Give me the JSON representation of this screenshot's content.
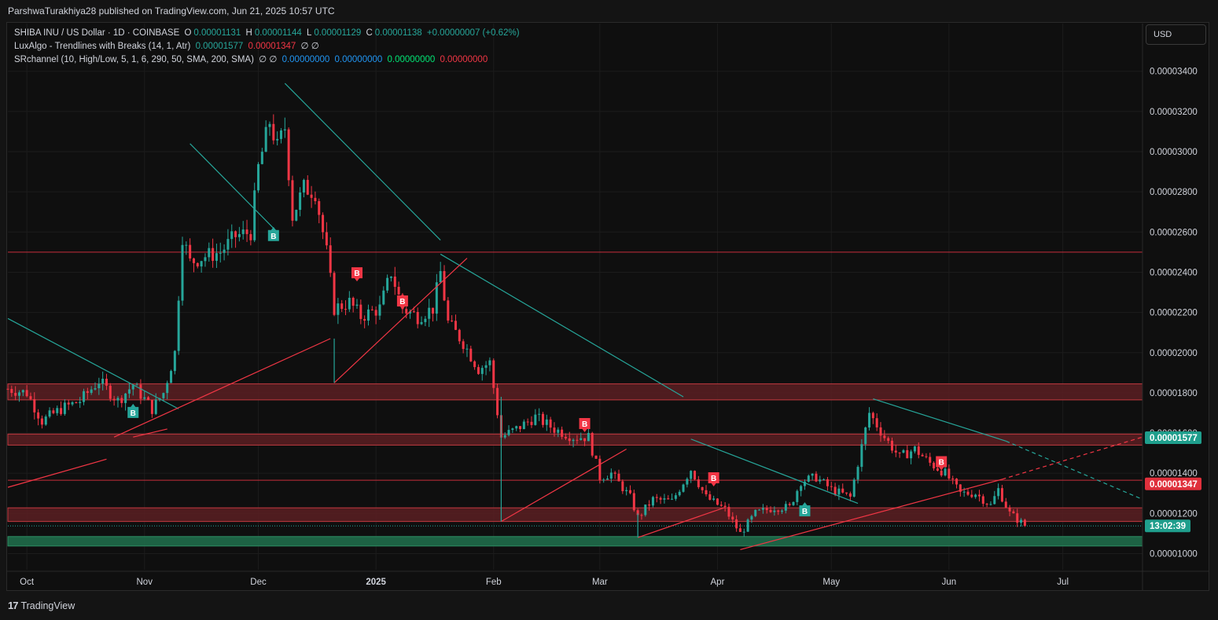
{
  "header": {
    "publisher_line": "ParshwaTurakhiya28 published on TradingView.com, Jun 21, 2025 10:57 UTC"
  },
  "legend": {
    "symbol": "SHIBA INU / US Dollar · 1D · COINBASE",
    "o_label": "O",
    "o": "0.00001131",
    "h_label": "H",
    "h": "0.00001144",
    "l_label": "L",
    "l": "0.00001129",
    "c_label": "C",
    "c": "0.00001138",
    "change": "+0.00000007 (+0.62%)",
    "ind1_name": "LuxAlgo - Trendlines with Breaks (14, 1, Atr)",
    "ind1_v1": "0.00001577",
    "ind1_v2": "0.00001347",
    "ind1_tail": "∅ ∅",
    "ind2_name": "SRchannel (10, High/Low, 5, 1, 6, 290, 50, SMA, 200, SMA)",
    "ind2_pre": "∅ ∅",
    "ind2_v1": "0.00000000",
    "ind2_v2": "0.00000000",
    "ind2_v3": "0.00000000",
    "ind2_v4": "0.00000000"
  },
  "currency_button": "USD",
  "footer": {
    "brand": "TradingView",
    "logo_text": "17"
  },
  "colors": {
    "up": "#26a69a",
    "down": "#f23645",
    "teal_line": "#26a69a",
    "red_line": "#f23645",
    "zone_red": "#5a1f22",
    "zone_green": "#1f6b4a",
    "bg": "#0f0f0f"
  },
  "chart_data": {
    "type": "candlestick",
    "ylim": [
      9.2e-06,
      3.52e-05
    ],
    "x_range": [
      "2024-09-26",
      "2025-07-22"
    ],
    "y_ticks": [
      "0.00001000",
      "0.00001200",
      "0.00001400",
      "0.00001600",
      "0.00001800",
      "0.00002000",
      "0.00002200",
      "0.00002400",
      "0.00002600",
      "0.00002800",
      "0.00003000",
      "0.00003200",
      "0.00003400"
    ],
    "x_ticks": [
      {
        "label": "Oct",
        "date": "2024-10-01"
      },
      {
        "label": "Nov",
        "date": "2024-11-01"
      },
      {
        "label": "Dec",
        "date": "2024-12-01"
      },
      {
        "label": "2025",
        "date": "2025-01-01"
      },
      {
        "label": "Feb",
        "date": "2025-02-01"
      },
      {
        "label": "Mar",
        "date": "2025-03-01"
      },
      {
        "label": "Apr",
        "date": "2025-04-01"
      },
      {
        "label": "May",
        "date": "2025-05-01"
      },
      {
        "label": "Jun",
        "date": "2025-06-01"
      },
      {
        "label": "Jul",
        "date": "2025-07-01"
      }
    ],
    "price_path": [
      [
        "2024-09-26",
        1.82e-05
      ],
      [
        "2024-10-01",
        1.8e-05
      ],
      [
        "2024-10-05",
        1.66e-05
      ],
      [
        "2024-10-10",
        1.72e-05
      ],
      [
        "2024-10-15",
        1.76e-05
      ],
      [
        "2024-10-20",
        1.86e-05
      ],
      [
        "2024-10-25",
        1.76e-05
      ],
      [
        "2024-10-29",
        1.84e-05
      ],
      [
        "2024-11-03",
        1.72e-05
      ],
      [
        "2024-11-06",
        1.8e-05
      ],
      [
        "2024-11-09",
        2e-05
      ],
      [
        "2024-11-11",
        2.58e-05
      ],
      [
        "2024-11-13",
        2.45e-05
      ],
      [
        "2024-11-17",
        2.48e-05
      ],
      [
        "2024-11-21",
        2.5e-05
      ],
      [
        "2024-11-25",
        2.58e-05
      ],
      [
        "2024-11-29",
        2.6e-05
      ],
      [
        "2024-12-01",
        2.92e-05
      ],
      [
        "2024-12-04",
        3.15e-05
      ],
      [
        "2024-12-06",
        3.02e-05
      ],
      [
        "2024-12-08",
        3.12e-05
      ],
      [
        "2024-12-10",
        2.68e-05
      ],
      [
        "2024-12-13",
        2.82e-05
      ],
      [
        "2024-12-16",
        2.8e-05
      ],
      [
        "2024-12-19",
        2.5e-05
      ],
      [
        "2024-12-21",
        2.22e-05
      ],
      [
        "2024-12-25",
        2.25e-05
      ],
      [
        "2024-12-28",
        2.18e-05
      ],
      [
        "2025-01-02",
        2.22e-05
      ],
      [
        "2025-01-05",
        2.4e-05
      ],
      [
        "2025-01-08",
        2.22e-05
      ],
      [
        "2025-01-12",
        2.18e-05
      ],
      [
        "2025-01-16",
        2.22e-05
      ],
      [
        "2025-01-18",
        2.4e-05
      ],
      [
        "2025-01-20",
        2.15e-05
      ],
      [
        "2025-01-24",
        2.05e-05
      ],
      [
        "2025-01-28",
        1.92e-05
      ],
      [
        "2025-01-31",
        1.95e-05
      ],
      [
        "2025-02-03",
        1.58e-05
      ],
      [
        "2025-02-07",
        1.62e-05
      ],
      [
        "2025-02-12",
        1.68e-05
      ],
      [
        "2025-02-17",
        1.62e-05
      ],
      [
        "2025-02-22",
        1.58e-05
      ],
      [
        "2025-02-26",
        1.58e-05
      ],
      [
        "2025-03-01",
        1.38e-05
      ],
      [
        "2025-03-04",
        1.4e-05
      ],
      [
        "2025-03-09",
        1.28e-05
      ],
      [
        "2025-03-11",
        1.18e-05
      ],
      [
        "2025-03-15",
        1.27e-05
      ],
      [
        "2025-03-20",
        1.26e-05
      ],
      [
        "2025-03-25",
        1.42e-05
      ],
      [
        "2025-03-29",
        1.28e-05
      ],
      [
        "2025-04-03",
        1.22e-05
      ],
      [
        "2025-04-07",
        1.1e-05
      ],
      [
        "2025-04-11",
        1.2e-05
      ],
      [
        "2025-04-16",
        1.23e-05
      ],
      [
        "2025-04-20",
        1.23e-05
      ],
      [
        "2025-04-23",
        1.36e-05
      ],
      [
        "2025-04-27",
        1.38e-05
      ],
      [
        "2025-05-01",
        1.32e-05
      ],
      [
        "2025-05-06",
        1.28e-05
      ],
      [
        "2025-05-08",
        1.45e-05
      ],
      [
        "2025-05-11",
        1.7e-05
      ],
      [
        "2025-05-15",
        1.58e-05
      ],
      [
        "2025-05-19",
        1.48e-05
      ],
      [
        "2025-05-23",
        1.52e-05
      ],
      [
        "2025-05-27",
        1.45e-05
      ],
      [
        "2025-05-31",
        1.4e-05
      ],
      [
        "2025-06-04",
        1.3e-05
      ],
      [
        "2025-06-08",
        1.3e-05
      ],
      [
        "2025-06-12",
        1.24e-05
      ],
      [
        "2025-06-14",
        1.32e-05
      ],
      [
        "2025-06-17",
        1.2e-05
      ],
      [
        "2025-06-21",
        1.14e-05
      ]
    ],
    "zones": [
      {
        "kind": "red",
        "top": 1.845e-05,
        "bottom": 1.765e-05
      },
      {
        "kind": "red",
        "top": 1.595e-05,
        "bottom": 1.54e-05
      },
      {
        "kind": "red",
        "top": 1.228e-05,
        "bottom": 1.16e-05
      },
      {
        "kind": "green",
        "top": 1.085e-05,
        "bottom": 1.038e-05
      }
    ],
    "levels": [
      {
        "y": 2.5e-05
      },
      {
        "y": 1.365e-05
      }
    ],
    "trendlines": [
      {
        "color": "teal",
        "p1": [
          "2024-09-26",
          2.17e-05
        ],
        "p2": [
          "2024-11-10",
          1.72e-05
        ]
      },
      {
        "color": "teal",
        "p1": [
          "2024-11-13",
          3.04e-05
        ],
        "p2": [
          "2024-12-06",
          2.6e-05
        ]
      },
      {
        "color": "teal",
        "p1": [
          "2024-12-08",
          3.34e-05
        ],
        "p2": [
          "2025-01-18",
          2.56e-05
        ]
      },
      {
        "color": "teal",
        "p1": [
          "2025-01-18",
          2.49e-05
        ],
        "p2": [
          "2025-03-23",
          1.78e-05
        ]
      },
      {
        "color": "teal",
        "p1": [
          "2025-03-25",
          1.57e-05
        ],
        "p2": [
          "2025-05-08",
          1.25e-05
        ]
      },
      {
        "color": "teal",
        "p1": [
          "2025-05-12",
          1.77e-05
        ],
        "p2": [
          "2025-06-16",
          1.56e-05
        ]
      },
      {
        "color": "teal",
        "dashed": true,
        "p1": [
          "2025-06-16",
          1.56e-05
        ],
        "p2": [
          "2025-07-22",
          1.27e-05
        ]
      },
      {
        "color": "red",
        "p1": [
          "2024-09-26",
          1.33e-05
        ],
        "p2": [
          "2024-10-22",
          1.47e-05
        ]
      },
      {
        "color": "red",
        "p1": [
          "2024-10-24",
          1.58e-05
        ],
        "p2": [
          "2024-12-20",
          2.07e-05
        ]
      },
      {
        "color": "red",
        "p1": [
          "2024-10-29",
          1.58e-05
        ],
        "p2": [
          "2024-11-07",
          1.62e-05
        ]
      },
      {
        "color": "red",
        "p1": [
          "2024-12-21",
          1.85e-05
        ],
        "p2": [
          "2025-01-25",
          2.47e-05
        ]
      },
      {
        "color": "red",
        "p1": [
          "2025-02-03",
          1.16e-05
        ],
        "p2": [
          "2025-03-08",
          1.52e-05
        ]
      },
      {
        "color": "red",
        "p1": [
          "2025-03-11",
          1.08e-05
        ],
        "p2": [
          "2025-04-03",
          1.23e-05
        ]
      },
      {
        "color": "red",
        "p1": [
          "2025-04-07",
          1.02e-05
        ],
        "p2": [
          "2025-06-15",
          1.37e-05
        ]
      },
      {
        "color": "red",
        "dashed": true,
        "p1": [
          "2025-06-15",
          1.37e-05
        ],
        "p2": [
          "2025-07-22",
          1.58e-05
        ]
      },
      {
        "color": "teal",
        "p1": [
          "2024-12-21",
          1.85e-05
        ],
        "p2": [
          "2024-12-21",
          2.07e-05
        ]
      },
      {
        "color": "teal",
        "p1": [
          "2025-02-03",
          1.16e-05
        ],
        "p2": [
          "2025-02-03",
          1.78e-05
        ]
      },
      {
        "color": "teal",
        "p1": [
          "2025-03-11",
          1.08e-05
        ],
        "p2": [
          "2025-03-11",
          1.2e-05
        ]
      }
    ],
    "break_labels": [
      {
        "text": "B",
        "kind": "up",
        "date": "2024-10-29",
        "y": 1.73e-05
      },
      {
        "text": "B",
        "kind": "up",
        "date": "2024-12-05",
        "y": 2.61e-05
      },
      {
        "text": "B",
        "kind": "down",
        "date": "2024-12-27",
        "y": 2.37e-05
      },
      {
        "text": "B",
        "kind": "down",
        "date": "2025-01-08",
        "y": 2.23e-05
      },
      {
        "text": "B",
        "kind": "down",
        "date": "2025-02-25",
        "y": 1.62e-05
      },
      {
        "text": "B",
        "kind": "down",
        "date": "2025-03-31",
        "y": 1.35e-05
      },
      {
        "text": "B",
        "kind": "up",
        "date": "2025-04-24",
        "y": 1.24e-05
      },
      {
        "text": "B",
        "kind": "down",
        "date": "2025-05-30",
        "y": 1.43e-05
      }
    ],
    "price_labels": [
      {
        "text": "0.00001577",
        "y": 1.577e-05,
        "color": "teal"
      },
      {
        "text": "0.00001347",
        "y": 1.347e-05,
        "color": "red"
      },
      {
        "text": "13:02:39",
        "y": 1.138e-05,
        "color": "teal"
      }
    ],
    "current_price": 1.138e-05
  }
}
